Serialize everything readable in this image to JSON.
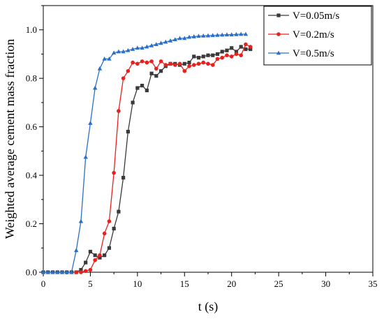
{
  "chart_data": {
    "type": "line",
    "xlabel": "t (s)",
    "ylabel": "Weighted average cement mass fraction",
    "xlim": [
      0,
      35
    ],
    "ylim": [
      0,
      1.1
    ],
    "xticks": [
      "0",
      "5",
      "10",
      "15",
      "20",
      "25",
      "30",
      "35"
    ],
    "yticks": [
      "0.0",
      "0.2",
      "0.4",
      "0.6",
      "0.8",
      "1.0"
    ],
    "grid": false,
    "legend_position": "top-right",
    "series": [
      {
        "name": "V=0.05m/s",
        "color": "#3a3a3a",
        "marker": "square",
        "x": [
          0,
          0.5,
          1,
          1.5,
          2,
          2.5,
          3,
          3.5,
          4,
          4.5,
          5,
          5.5,
          6,
          6.5,
          7,
          7.5,
          8,
          8.5,
          9,
          9.5,
          10,
          10.5,
          11,
          11.5,
          12,
          12.5,
          13,
          13.5,
          14,
          14.5,
          15,
          15.5,
          16,
          16.5,
          17,
          17.5,
          18,
          18.5,
          19,
          19.5,
          20,
          20.5,
          21,
          21.5,
          22
        ],
        "y": [
          0,
          0,
          0,
          0,
          0,
          0,
          0,
          0,
          0.01,
          0.04,
          0.085,
          0.07,
          0.06,
          0.07,
          0.1,
          0.18,
          0.25,
          0.39,
          0.58,
          0.7,
          0.76,
          0.77,
          0.75,
          0.82,
          0.81,
          0.83,
          0.85,
          0.86,
          0.86,
          0.855,
          0.86,
          0.865,
          0.89,
          0.885,
          0.89,
          0.895,
          0.895,
          0.9,
          0.91,
          0.915,
          0.925,
          0.91,
          0.93,
          0.92,
          0.92
        ]
      },
      {
        "name": "V=0.2m/s",
        "color": "#e8211f",
        "marker": "circle",
        "x": [
          3.5,
          4,
          4.5,
          5,
          5.5,
          6,
          6.5,
          7,
          7.5,
          8,
          8.5,
          9,
          9.5,
          10,
          10.5,
          11,
          11.5,
          12,
          12.5,
          13,
          13.5,
          14,
          14.5,
          15,
          15.5,
          16,
          16.5,
          17,
          17.5,
          18,
          18.5,
          19,
          19.5,
          20,
          20.5,
          21,
          21.5,
          22
        ],
        "y": [
          0,
          0,
          0.005,
          0.01,
          0.05,
          0.07,
          0.16,
          0.21,
          0.41,
          0.665,
          0.8,
          0.83,
          0.865,
          0.86,
          0.87,
          0.865,
          0.87,
          0.84,
          0.87,
          0.855,
          0.86,
          0.855,
          0.86,
          0.83,
          0.85,
          0.855,
          0.86,
          0.865,
          0.86,
          0.855,
          0.88,
          0.885,
          0.895,
          0.89,
          0.9,
          0.895,
          0.94,
          0.93
        ]
      },
      {
        "name": "V=0.5m/s",
        "color": "#2a6fc9",
        "marker": "triangle",
        "x": [
          0,
          0.5,
          1,
          1.5,
          2,
          2.5,
          3,
          3.5,
          4,
          4.5,
          5,
          5.5,
          6,
          6.5,
          7,
          7.5,
          8,
          8.5,
          9,
          9.5,
          10,
          10.5,
          11,
          11.5,
          12,
          12.5,
          13,
          13.5,
          14,
          14.5,
          15,
          15.5,
          16,
          16.5,
          17,
          17.5,
          18,
          18.5,
          19,
          19.5,
          20,
          20.5,
          21,
          21.5
        ],
        "y": [
          0,
          0,
          0,
          0,
          0,
          0,
          0,
          0.09,
          0.21,
          0.475,
          0.615,
          0.76,
          0.84,
          0.88,
          0.88,
          0.905,
          0.91,
          0.91,
          0.915,
          0.92,
          0.925,
          0.925,
          0.93,
          0.935,
          0.94,
          0.945,
          0.95,
          0.955,
          0.96,
          0.965,
          0.965,
          0.97,
          0.972,
          0.974,
          0.975,
          0.976,
          0.977,
          0.978,
          0.979,
          0.98,
          0.98,
          0.981,
          0.982,
          0.982
        ]
      }
    ]
  }
}
